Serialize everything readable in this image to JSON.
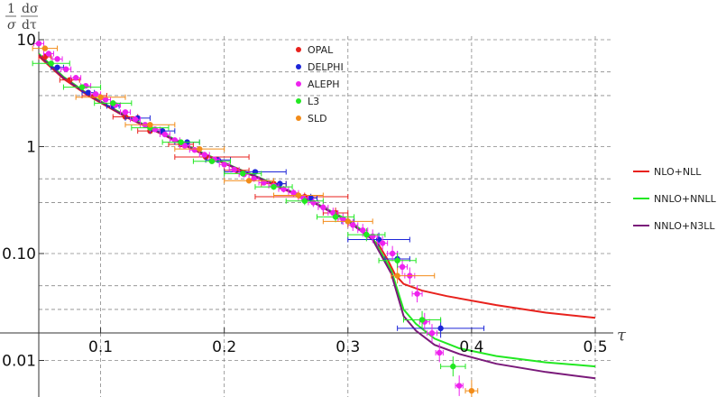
{
  "chart_data": {
    "type": "scatter",
    "title": "",
    "xlabel": "τ",
    "ylabel": {
      "lead": "1",
      "lead_den": "σ",
      "num": "dσ",
      "den": "dτ"
    },
    "xlim": [
      0.05,
      0.5
    ],
    "ylim": [
      0.005,
      10.5
    ],
    "y_scale": "log",
    "grid": true,
    "x_ticks": [
      {
        "value": 0.1,
        "label": "0.1"
      },
      {
        "value": 0.2,
        "label": "0.2"
      },
      {
        "value": 0.3,
        "label": "0.3"
      },
      {
        "value": 0.4,
        "label": "0.4"
      },
      {
        "value": 0.5,
        "label": "0.5"
      }
    ],
    "y_ticks": [
      {
        "value": 10,
        "label": "10"
      },
      {
        "value": 1,
        "label": "1"
      },
      {
        "value": 0.1,
        "label": "0.10"
      },
      {
        "value": 0.01,
        "label": "0.01"
      }
    ],
    "legend_points_placement": "top-center",
    "legend_lines_placement": "right",
    "datasets": [
      {
        "name": "OPAL",
        "color": "#e8221d",
        "points": [
          [
            0.055,
            6.9,
            0.005,
            0.005
          ],
          [
            0.075,
            4.2,
            0.008,
            0.008
          ],
          [
            0.095,
            3.0,
            0.01,
            0.01
          ],
          [
            0.12,
            1.9,
            0.01,
            0.01
          ],
          [
            0.14,
            1.4,
            0.01,
            0.01
          ],
          [
            0.165,
            1.05,
            0.01,
            0.01
          ],
          [
            0.185,
            0.8,
            0.025,
            0.035
          ],
          [
            0.21,
            0.6,
            0.01,
            0.01
          ],
          [
            0.24,
            0.45,
            0.01,
            0.01
          ],
          [
            0.265,
            0.34,
            0.04,
            0.035
          ],
          [
            0.29,
            0.24,
            0.01,
            0.01
          ]
        ]
      },
      {
        "name": "DELPHI",
        "color": "#1c25d8",
        "points": [
          [
            0.065,
            5.5,
            0.005,
            0.005
          ],
          [
            0.09,
            3.2,
            0.005,
            0.005
          ],
          [
            0.11,
            2.4,
            0.005,
            0.005
          ],
          [
            0.13,
            1.85,
            0.01,
            0.01
          ],
          [
            0.15,
            1.4,
            0.01,
            0.01
          ],
          [
            0.17,
            1.1,
            0.01,
            0.01
          ],
          [
            0.195,
            0.75,
            0.01,
            0.01
          ],
          [
            0.225,
            0.58,
            0.025,
            0.025
          ],
          [
            0.245,
            0.45,
            0.005,
            0.005
          ],
          [
            0.27,
            0.33,
            0.005,
            0.005
          ],
          [
            0.3,
            0.2,
            0.005,
            0.005
          ],
          [
            0.325,
            0.135,
            0.025,
            0.025
          ],
          [
            0.34,
            0.089,
            0.01,
            0.01
          ],
          [
            0.375,
            0.02,
            0.035,
            0.035
          ]
        ]
      },
      {
        "name": "ALEPH",
        "color": "#ee22ee",
        "points": [
          [
            0.05,
            9.2,
            0.004,
            0.004
          ],
          [
            0.058,
            7.4,
            0.004,
            0.004
          ],
          [
            0.065,
            6.6,
            0.004,
            0.004
          ],
          [
            0.072,
            5.3,
            0.004,
            0.004
          ],
          [
            0.08,
            4.4,
            0.004,
            0.004
          ],
          [
            0.088,
            3.7,
            0.004,
            0.004
          ],
          [
            0.096,
            3.1,
            0.004,
            0.004
          ],
          [
            0.104,
            2.75,
            0.004,
            0.004
          ],
          [
            0.112,
            2.45,
            0.004,
            0.004
          ],
          [
            0.12,
            2.1,
            0.004,
            0.004
          ],
          [
            0.128,
            1.8,
            0.004,
            0.004
          ],
          [
            0.136,
            1.6,
            0.004,
            0.004
          ],
          [
            0.144,
            1.45,
            0.004,
            0.004
          ],
          [
            0.152,
            1.3,
            0.004,
            0.004
          ],
          [
            0.16,
            1.15,
            0.004,
            0.004
          ],
          [
            0.168,
            1.02,
            0.004,
            0.004
          ],
          [
            0.176,
            0.93,
            0.004,
            0.004
          ],
          [
            0.184,
            0.84,
            0.004,
            0.004
          ],
          [
            0.192,
            0.76,
            0.004,
            0.004
          ],
          [
            0.2,
            0.68,
            0.004,
            0.004
          ],
          [
            0.208,
            0.61,
            0.004,
            0.004
          ],
          [
            0.216,
            0.55,
            0.004,
            0.004
          ],
          [
            0.224,
            0.5,
            0.004,
            0.004
          ],
          [
            0.232,
            0.46,
            0.004,
            0.004
          ],
          [
            0.24,
            0.43,
            0.004,
            0.004
          ],
          [
            0.248,
            0.4,
            0.004,
            0.004
          ],
          [
            0.256,
            0.37,
            0.004,
            0.004
          ],
          [
            0.264,
            0.33,
            0.004,
            0.004
          ],
          [
            0.272,
            0.3,
            0.004,
            0.004
          ],
          [
            0.28,
            0.27,
            0.004,
            0.004
          ],
          [
            0.288,
            0.24,
            0.004,
            0.004
          ],
          [
            0.296,
            0.21,
            0.004,
            0.004
          ],
          [
            0.304,
            0.185,
            0.004,
            0.004
          ],
          [
            0.312,
            0.165,
            0.004,
            0.004
          ],
          [
            0.32,
            0.145,
            0.004,
            0.004
          ],
          [
            0.328,
            0.125,
            0.004,
            0.004
          ],
          [
            0.336,
            0.1,
            0.004,
            0.004
          ],
          [
            0.344,
            0.075,
            0.004,
            0.004
          ],
          [
            0.35,
            0.062,
            0.004,
            0.004
          ],
          [
            0.356,
            0.042,
            0.004,
            0.004
          ],
          [
            0.362,
            0.023,
            0.004,
            0.004
          ],
          [
            0.368,
            0.018,
            0.004,
            0.004
          ],
          [
            0.374,
            0.0118,
            0.003,
            0.003
          ],
          [
            0.39,
            0.0058,
            0.003,
            0.003
          ]
        ]
      },
      {
        "name": "L3",
        "color": "#22e822",
        "points": [
          [
            0.06,
            6.0,
            0.015,
            0.015
          ],
          [
            0.085,
            3.6,
            0.015,
            0.015
          ],
          [
            0.11,
            2.55,
            0.015,
            0.015
          ],
          [
            0.14,
            1.5,
            0.015,
            0.015
          ],
          [
            0.165,
            1.1,
            0.015,
            0.015
          ],
          [
            0.19,
            0.73,
            0.015,
            0.015
          ],
          [
            0.215,
            0.56,
            0.015,
            0.015
          ],
          [
            0.24,
            0.42,
            0.015,
            0.015
          ],
          [
            0.265,
            0.31,
            0.015,
            0.015
          ],
          [
            0.29,
            0.22,
            0.015,
            0.015
          ],
          [
            0.315,
            0.15,
            0.015,
            0.015
          ],
          [
            0.34,
            0.086,
            0.015,
            0.015
          ],
          [
            0.36,
            0.024,
            0.015,
            0.015
          ],
          [
            0.385,
            0.0088,
            0.01,
            0.01
          ]
        ]
      },
      {
        "name": "SLD",
        "color": "#f28c19",
        "points": [
          [
            0.055,
            8.3,
            0.01,
            0.01
          ],
          [
            0.1,
            2.9,
            0.02,
            0.02
          ],
          [
            0.14,
            1.6,
            0.02,
            0.02
          ],
          [
            0.18,
            0.95,
            0.02,
            0.02
          ],
          [
            0.22,
            0.48,
            0.02,
            0.02
          ],
          [
            0.26,
            0.35,
            0.02,
            0.02
          ],
          [
            0.3,
            0.2,
            0.02,
            0.02
          ],
          [
            0.34,
            0.062,
            0.005,
            0.03
          ],
          [
            0.4,
            0.0052,
            0.005,
            0.005
          ]
        ]
      }
    ],
    "curves": [
      {
        "name": "NLO+NLL",
        "color": "#e8221d",
        "points": [
          [
            0.05,
            7.0
          ],
          [
            0.07,
            4.3
          ],
          [
            0.09,
            3.0
          ],
          [
            0.12,
            1.9
          ],
          [
            0.15,
            1.3
          ],
          [
            0.18,
            0.88
          ],
          [
            0.21,
            0.62
          ],
          [
            0.24,
            0.44
          ],
          [
            0.27,
            0.31
          ],
          [
            0.3,
            0.2
          ],
          [
            0.315,
            0.15
          ],
          [
            0.325,
            0.12
          ],
          [
            0.332,
            0.088
          ],
          [
            0.338,
            0.064
          ],
          [
            0.345,
            0.052
          ],
          [
            0.36,
            0.045
          ],
          [
            0.38,
            0.04
          ],
          [
            0.42,
            0.033
          ],
          [
            0.46,
            0.028
          ],
          [
            0.5,
            0.025
          ]
        ]
      },
      {
        "name": "NNLO+NNLL",
        "color": "#22e822",
        "points": [
          [
            0.05,
            7.4
          ],
          [
            0.07,
            4.5
          ],
          [
            0.09,
            3.1
          ],
          [
            0.12,
            1.95
          ],
          [
            0.15,
            1.33
          ],
          [
            0.18,
            0.9
          ],
          [
            0.21,
            0.63
          ],
          [
            0.24,
            0.45
          ],
          [
            0.27,
            0.315
          ],
          [
            0.3,
            0.205
          ],
          [
            0.32,
            0.14
          ],
          [
            0.335,
            0.07
          ],
          [
            0.345,
            0.03
          ],
          [
            0.355,
            0.022
          ],
          [
            0.37,
            0.016
          ],
          [
            0.39,
            0.013
          ],
          [
            0.42,
            0.011
          ],
          [
            0.46,
            0.0096
          ],
          [
            0.5,
            0.0088
          ]
        ]
      },
      {
        "name": "NNLO+N3LL",
        "color": "#7a1a7a",
        "points": [
          [
            0.05,
            7.2
          ],
          [
            0.07,
            4.4
          ],
          [
            0.09,
            3.05
          ],
          [
            0.12,
            1.92
          ],
          [
            0.15,
            1.31
          ],
          [
            0.18,
            0.89
          ],
          [
            0.21,
            0.625
          ],
          [
            0.24,
            0.445
          ],
          [
            0.27,
            0.31
          ],
          [
            0.3,
            0.2
          ],
          [
            0.32,
            0.135
          ],
          [
            0.335,
            0.065
          ],
          [
            0.345,
            0.026
          ],
          [
            0.355,
            0.019
          ],
          [
            0.37,
            0.014
          ],
          [
            0.39,
            0.0115
          ],
          [
            0.42,
            0.0093
          ],
          [
            0.46,
            0.0078
          ],
          [
            0.5,
            0.0068
          ]
        ]
      }
    ]
  }
}
